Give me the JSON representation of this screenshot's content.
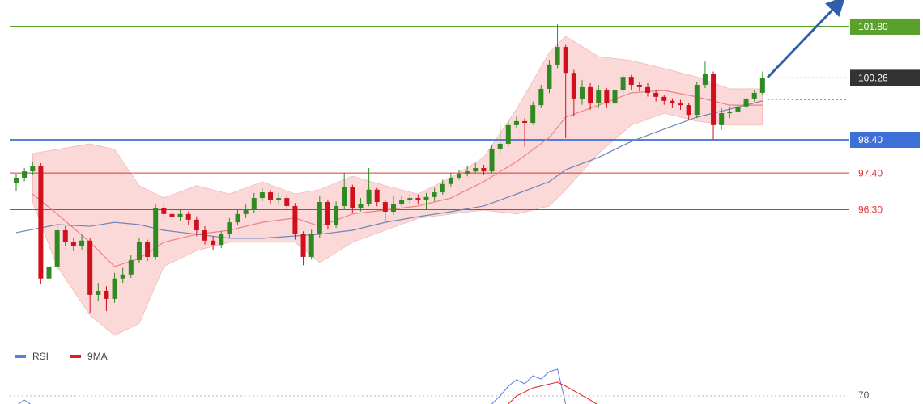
{
  "chart_data": [
    {
      "type": "candlestick",
      "ylim": [
        92.16,
        102.6
      ],
      "up_color": "#2f8a22",
      "down_color": "#d0111b",
      "open": [
        97.1,
        97.26,
        97.45,
        97.62,
        94.23,
        94.59,
        95.68,
        95.32,
        95.2,
        95.37,
        93.74,
        93.86,
        93.62,
        94.23,
        94.35,
        94.78,
        95.32,
        94.88,
        96.34,
        96.17,
        96.09,
        96.17,
        96.0,
        95.68,
        95.37,
        95.24,
        95.56,
        95.92,
        96.17,
        96.29,
        96.65,
        96.82,
        96.58,
        96.65,
        96.41,
        95.56,
        94.88,
        95.56,
        96.53,
        95.85,
        96.41,
        96.97,
        96.34,
        96.48,
        96.9,
        96.53,
        96.24,
        96.48,
        96.58,
        96.65,
        96.58,
        96.68,
        96.82,
        97.07,
        97.26,
        97.38,
        97.45,
        97.55,
        97.45,
        98.11,
        98.28,
        98.84,
        98.96,
        98.91,
        99.44,
        99.93,
        100.66,
        101.19,
        100.41,
        99.64,
        99.98,
        99.49,
        99.88,
        99.49,
        99.88,
        100.29,
        100.05,
        99.98,
        99.81,
        99.69,
        99.57,
        99.49,
        99.44,
        99.15,
        100.05,
        100.37,
        98.84,
        99.2,
        99.25,
        99.4,
        99.64,
        99.81
      ],
      "high": [
        97.38,
        97.55,
        97.75,
        97.7,
        94.7,
        95.85,
        95.8,
        95.45,
        95.55,
        95.45,
        94.1,
        94.0,
        94.4,
        94.55,
        94.95,
        95.45,
        95.4,
        96.45,
        96.45,
        96.25,
        96.3,
        96.25,
        96.1,
        95.8,
        95.5,
        95.65,
        96.05,
        96.3,
        96.45,
        96.8,
        96.95,
        96.9,
        96.8,
        96.75,
        96.5,
        95.65,
        95.7,
        96.7,
        96.6,
        96.55,
        97.4,
        97.05,
        96.65,
        97.55,
        96.95,
        96.6,
        96.7,
        96.7,
        96.75,
        96.75,
        96.8,
        96.95,
        97.2,
        97.4,
        97.5,
        97.6,
        97.7,
        97.65,
        98.25,
        98.9,
        98.95,
        99.1,
        99.05,
        99.55,
        100.05,
        100.8,
        101.87,
        101.25,
        100.5,
        100.2,
        100.1,
        100.05,
        99.95,
        100.05,
        100.35,
        100.35,
        100.15,
        100.1,
        99.9,
        99.75,
        99.65,
        99.6,
        99.5,
        100.15,
        100.75,
        100.45,
        99.35,
        99.4,
        99.55,
        99.75,
        99.9,
        100.45
      ],
      "low": [
        96.85,
        97.15,
        97.35,
        94.05,
        93.9,
        94.5,
        95.2,
        95.05,
        95.1,
        93.2,
        93.55,
        93.25,
        93.5,
        94.1,
        94.25,
        94.7,
        94.75,
        94.8,
        96.05,
        95.95,
        95.95,
        95.85,
        95.5,
        95.25,
        95.1,
        95.15,
        95.45,
        95.85,
        96.05,
        96.2,
        96.55,
        96.45,
        96.45,
        96.3,
        95.4,
        94.63,
        94.8,
        95.45,
        95.7,
        95.75,
        96.3,
        96.2,
        96.25,
        96.4,
        96.4,
        95.95,
        96.15,
        96.4,
        96.5,
        96.45,
        96.3,
        96.55,
        96.75,
        97.0,
        97.2,
        97.3,
        97.4,
        97.35,
        97.4,
        98.0,
        98.2,
        98.75,
        98.2,
        98.85,
        99.35,
        99.8,
        100.55,
        98.45,
        99.1,
        99.45,
        99.3,
        99.35,
        99.35,
        99.4,
        99.8,
        99.9,
        99.85,
        99.7,
        99.55,
        99.45,
        99.35,
        99.3,
        99.0,
        99.05,
        99.95,
        98.42,
        98.7,
        99.05,
        99.15,
        99.3,
        99.55,
        99.75
      ],
      "close": [
        97.26,
        97.45,
        97.62,
        94.23,
        94.59,
        95.68,
        95.32,
        95.2,
        95.37,
        93.74,
        93.86,
        93.62,
        94.23,
        94.35,
        94.78,
        95.32,
        94.88,
        96.34,
        96.17,
        96.09,
        96.17,
        96.0,
        95.68,
        95.37,
        95.24,
        95.56,
        95.92,
        96.17,
        96.29,
        96.65,
        96.82,
        96.58,
        96.65,
        96.41,
        95.56,
        94.88,
        95.56,
        96.53,
        95.85,
        96.41,
        96.97,
        96.34,
        96.48,
        96.9,
        96.53,
        96.24,
        96.48,
        96.58,
        96.65,
        96.58,
        96.68,
        96.82,
        97.07,
        97.26,
        97.38,
        97.45,
        97.55,
        97.45,
        98.11,
        98.28,
        98.84,
        98.96,
        98.91,
        99.44,
        99.93,
        100.66,
        101.19,
        100.41,
        99.64,
        99.98,
        99.49,
        99.88,
        99.49,
        99.88,
        100.29,
        100.05,
        99.98,
        99.81,
        99.69,
        99.57,
        99.49,
        99.44,
        99.15,
        100.05,
        100.37,
        98.84,
        99.2,
        99.25,
        99.4,
        99.64,
        99.81,
        100.27
      ],
      "band": {
        "color": "#f9cccc",
        "x": [
          2,
          5,
          9,
          12,
          15,
          18,
          22,
          26,
          30,
          34,
          37,
          41,
          45,
          49,
          53,
          57,
          61,
          65,
          67,
          71,
          75,
          79,
          83,
          87,
          91
        ],
        "upper": [
          97.99,
          98.11,
          98.28,
          98.11,
          97.02,
          96.65,
          97.02,
          96.77,
          97.14,
          96.77,
          96.9,
          97.31,
          97.02,
          96.77,
          97.26,
          97.87,
          99.32,
          101.02,
          101.51,
          100.9,
          100.78,
          100.54,
          100.29,
          99.93,
          99.93
        ],
        "lower": [
          96.53,
          94.59,
          93.13,
          92.52,
          92.88,
          94.59,
          95.07,
          95.32,
          95.32,
          95.32,
          94.71,
          95.32,
          95.68,
          96.04,
          96.17,
          96.29,
          96.17,
          96.41,
          96.9,
          97.99,
          98.84,
          99.2,
          98.96,
          98.84,
          98.84
        ]
      },
      "series": [
        {
          "color": "#f08080",
          "x": [
            2,
            5,
            9,
            12,
            15,
            18,
            22,
            26,
            30,
            34,
            37,
            41,
            45,
            49,
            53,
            57,
            61,
            65,
            67,
            71,
            75,
            79,
            83,
            87,
            91
          ],
          "values": [
            96.77,
            96.17,
            95.32,
            94.59,
            94.83,
            95.32,
            95.56,
            95.68,
            95.92,
            96.05,
            95.8,
            96.17,
            96.29,
            96.41,
            96.65,
            97.14,
            97.74,
            98.47,
            99.08,
            99.44,
            99.81,
            99.88,
            99.69,
            99.44,
            99.44
          ]
        },
        {
          "color": "#6f86b8",
          "x": [
            0,
            5,
            9,
            12,
            15,
            18,
            22,
            26,
            30,
            34,
            37,
            41,
            45,
            49,
            53,
            57,
            61,
            65,
            67,
            71,
            75,
            79,
            83,
            87,
            91
          ],
          "values": [
            95.61,
            95.85,
            95.8,
            95.92,
            95.85,
            95.68,
            95.56,
            95.44,
            95.44,
            95.51,
            95.56,
            95.68,
            95.92,
            96.09,
            96.24,
            96.41,
            96.77,
            97.14,
            97.5,
            97.87,
            98.35,
            98.72,
            99.08,
            99.32,
            99.57
          ]
        }
      ],
      "levels": [
        {
          "value": 101.8,
          "label": "101.80",
          "color": "#5aa02c",
          "box": true
        },
        {
          "value": 100.26,
          "label": "100.26",
          "color": "#333333",
          "box": true,
          "dotted": true
        },
        {
          "value": 99.61,
          "color": "#555555",
          "dotted": true
        },
        {
          "value": 98.4,
          "label": "98.40",
          "color": "#3d6fd6",
          "box": true
        },
        {
          "value": 97.4,
          "label": "97.40",
          "color": "#e03030"
        },
        {
          "value": 96.3,
          "label": "96.30",
          "color": "#e03030"
        }
      ]
    },
    {
      "type": "line",
      "ylim": [
        30,
        90
      ],
      "yticks": [
        70
      ],
      "series": [
        {
          "name": "RSI",
          "color": "#5b7fe0",
          "x": [
            0,
            1,
            2,
            null,
            58,
            59,
            60,
            61,
            62,
            63,
            64,
            65,
            66,
            67
          ],
          "values": [
            66.0,
            68.3,
            66.0,
            null,
            66.7,
            70.0,
            74.0,
            76.7,
            75.0,
            78.3,
            77.0,
            80.0,
            81.0,
            66.7
          ]
        },
        {
          "name": "9MA",
          "color": "#e02020",
          "x": [
            59,
            60,
            61,
            63,
            66,
            67,
            70,
            72
          ],
          "values": [
            65.0,
            66.7,
            70.0,
            73.3,
            75.7,
            74.0,
            68.3,
            64.0
          ]
        }
      ]
    }
  ]
}
